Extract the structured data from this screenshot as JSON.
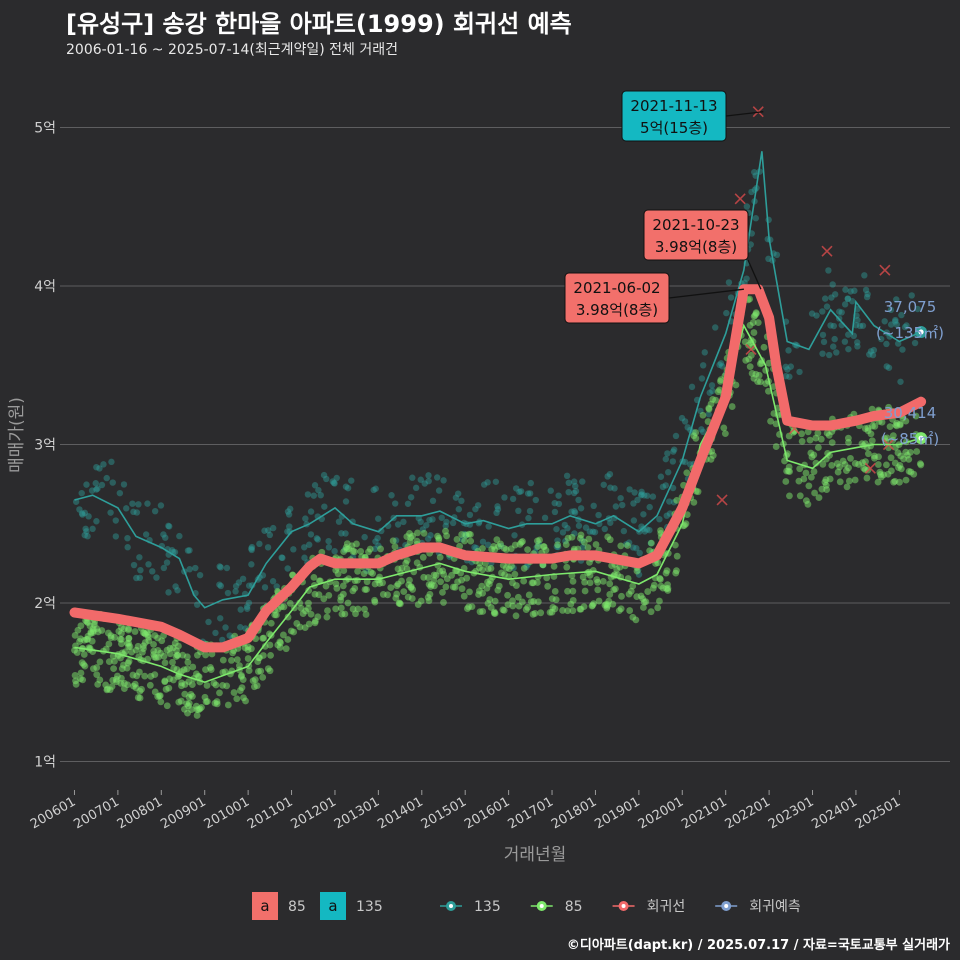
{
  "header": {
    "title": "[유성구] 송강 한마을 아파트(1999) 회귀선 예측",
    "subtitle": "2006-01-16 ~ 2025-07-14(최근계약일) 전체 거래건"
  },
  "credit": "©디아파트(dapt.kr) / 2025.07.17 / 자료=국토교통부 실거래가",
  "colors": {
    "background": "#2b2b2d",
    "grid": "#5e5e60",
    "s135": "#2e9e9a",
    "s85": "#7ee86c",
    "reg": "#f26a6a",
    "pred": "#7f9fcf",
    "label135": "#14b8c2",
    "label85": "#f2706b"
  },
  "chart_data": {
    "type": "scatter",
    "xlabel": "거래년월",
    "ylabel": "매매가(원)",
    "xlim": [
      "2005-09",
      "2026-03"
    ],
    "ylim": [
      0.82,
      5.3
    ],
    "y_unit": "억",
    "x_ticks": [
      "200601",
      "200701",
      "200801",
      "200901",
      "201001",
      "201101",
      "201201",
      "201301",
      "201401",
      "201501",
      "201601",
      "201701",
      "201801",
      "201901",
      "202001",
      "202101",
      "202201",
      "202301",
      "202401",
      "202501"
    ],
    "y_ticks": [
      {
        "value": 1,
        "label": "1억"
      },
      {
        "value": 2,
        "label": "2억"
      },
      {
        "value": 3,
        "label": "3억"
      },
      {
        "value": 4,
        "label": "4억"
      },
      {
        "value": 5,
        "label": "5억"
      }
    ],
    "grid": true,
    "series": [
      {
        "name": "135",
        "kind": "trend",
        "points": [
          [
            "2006-01",
            2.65
          ],
          [
            "2006-06",
            2.68
          ],
          [
            "2007-01",
            2.6
          ],
          [
            "2007-06",
            2.42
          ],
          [
            "2008-01",
            2.35
          ],
          [
            "2008-06",
            2.28
          ],
          [
            "2008-10",
            2.05
          ],
          [
            "2009-01",
            1.97
          ],
          [
            "2009-06",
            2.02
          ],
          [
            "2010-01",
            2.05
          ],
          [
            "2010-06",
            2.25
          ],
          [
            "2011-01",
            2.45
          ],
          [
            "2011-06",
            2.5
          ],
          [
            "2012-01",
            2.6
          ],
          [
            "2012-06",
            2.5
          ],
          [
            "2013-01",
            2.45
          ],
          [
            "2013-06",
            2.55
          ],
          [
            "2014-01",
            2.55
          ],
          [
            "2014-06",
            2.58
          ],
          [
            "2015-01",
            2.5
          ],
          [
            "2015-06",
            2.52
          ],
          [
            "2016-01",
            2.47
          ],
          [
            "2016-06",
            2.5
          ],
          [
            "2017-01",
            2.5
          ],
          [
            "2017-06",
            2.55
          ],
          [
            "2018-01",
            2.5
          ],
          [
            "2018-06",
            2.55
          ],
          [
            "2019-01",
            2.45
          ],
          [
            "2019-06",
            2.55
          ],
          [
            "2020-01",
            2.9
          ],
          [
            "2020-06",
            3.3
          ],
          [
            "2021-01",
            3.7
          ],
          [
            "2021-06",
            4.1
          ],
          [
            "2021-11",
            4.85
          ],
          [
            "2022-01",
            4.3
          ],
          [
            "2022-06",
            3.65
          ],
          [
            "2022-12",
            3.6
          ],
          [
            "2023-06",
            3.85
          ],
          [
            "2023-12",
            3.7
          ],
          [
            "2024-01",
            3.9
          ],
          [
            "2024-06",
            3.75
          ],
          [
            "2025-01",
            3.65
          ],
          [
            "2025-07",
            3.71
          ]
        ]
      },
      {
        "name": "85",
        "kind": "trend",
        "points": [
          [
            "2006-01",
            1.72
          ],
          [
            "2007-01",
            1.68
          ],
          [
            "2008-01",
            1.6
          ],
          [
            "2008-06",
            1.55
          ],
          [
            "2009-01",
            1.5
          ],
          [
            "2010-01",
            1.6
          ],
          [
            "2010-06",
            1.75
          ],
          [
            "2011-01",
            1.95
          ],
          [
            "2011-06",
            2.1
          ],
          [
            "2012-01",
            2.15
          ],
          [
            "2013-01",
            2.15
          ],
          [
            "2014-01",
            2.22
          ],
          [
            "2014-06",
            2.25
          ],
          [
            "2015-01",
            2.2
          ],
          [
            "2016-01",
            2.15
          ],
          [
            "2017-01",
            2.18
          ],
          [
            "2018-01",
            2.2
          ],
          [
            "2019-01",
            2.12
          ],
          [
            "2019-06",
            2.18
          ],
          [
            "2020-01",
            2.5
          ],
          [
            "2020-06",
            3.0
          ],
          [
            "2021-01",
            3.3
          ],
          [
            "2021-06",
            3.75
          ],
          [
            "2021-12",
            3.5
          ],
          [
            "2022-06",
            2.9
          ],
          [
            "2023-01",
            2.85
          ],
          [
            "2023-06",
            2.95
          ],
          [
            "2024-01",
            2.98
          ],
          [
            "2024-06",
            3.0
          ],
          [
            "2025-01",
            3.0
          ],
          [
            "2025-07",
            3.04
          ]
        ]
      },
      {
        "name": "회귀선",
        "kind": "regression",
        "points": [
          [
            "2006-01",
            1.94
          ],
          [
            "2007-01",
            1.9
          ],
          [
            "2008-01",
            1.85
          ],
          [
            "2008-06",
            1.8
          ],
          [
            "2009-01",
            1.72
          ],
          [
            "2009-06",
            1.72
          ],
          [
            "2010-01",
            1.78
          ],
          [
            "2010-06",
            1.95
          ],
          [
            "2011-01",
            2.1
          ],
          [
            "2011-06",
            2.23
          ],
          [
            "2011-09",
            2.28
          ],
          [
            "2012-01",
            2.25
          ],
          [
            "2013-01",
            2.25
          ],
          [
            "2013-06",
            2.3
          ],
          [
            "2014-01",
            2.35
          ],
          [
            "2014-06",
            2.35
          ],
          [
            "2015-01",
            2.3
          ],
          [
            "2016-01",
            2.28
          ],
          [
            "2017-01",
            2.28
          ],
          [
            "2017-06",
            2.3
          ],
          [
            "2018-01",
            2.3
          ],
          [
            "2019-01",
            2.25
          ],
          [
            "2019-06",
            2.3
          ],
          [
            "2020-01",
            2.6
          ],
          [
            "2020-06",
            2.9
          ],
          [
            "2021-01",
            3.3
          ],
          [
            "2021-06",
            3.98
          ],
          [
            "2021-10",
            3.98
          ],
          [
            "2022-01",
            3.8
          ],
          [
            "2022-03",
            3.5
          ],
          [
            "2022-06",
            3.15
          ],
          [
            "2023-01",
            3.12
          ],
          [
            "2023-06",
            3.12
          ],
          [
            "2024-01",
            3.15
          ],
          [
            "2024-06",
            3.18
          ],
          [
            "2025-01",
            3.2
          ],
          [
            "2025-07",
            3.27
          ]
        ]
      },
      {
        "name": "회귀예측",
        "kind": "prediction",
        "points": [
          [
            "2025-07",
            3.71
          ],
          [
            "2025-07",
            3.04
          ]
        ]
      }
    ],
    "annotations": [
      {
        "date": "2021-11-13",
        "price_label": "5억(15층)",
        "y": 5.1,
        "color": "label135"
      },
      {
        "date": "2021-10-23",
        "price_label": "3.98억(8층)",
        "y": 3.98,
        "color": "label85"
      },
      {
        "date": "2021-06-02",
        "price_label": "3.98억(8층)",
        "y": 3.98,
        "color": "label85"
      }
    ],
    "end_labels": [
      {
        "series": "135",
        "value": "37,075",
        "area": "(~135㎡)",
        "y": 3.71
      },
      {
        "series": "85",
        "value": "30,414",
        "area": "(~85㎡)",
        "y": 3.04
      }
    ]
  },
  "legend": {
    "label_items": [
      {
        "key": "a",
        "name": "85",
        "color": "label85"
      },
      {
        "key": "a",
        "name": "135",
        "color": "label135"
      }
    ],
    "line_items": [
      {
        "name": "135",
        "color": "s135"
      },
      {
        "name": "85",
        "color": "s85"
      },
      {
        "name": "회귀선",
        "color": "reg"
      },
      {
        "name": "회귀예측",
        "color": "pred"
      }
    ]
  }
}
